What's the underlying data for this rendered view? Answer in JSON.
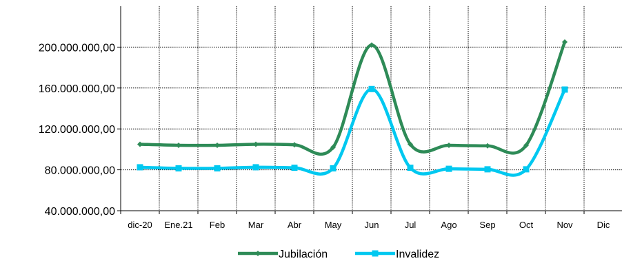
{
  "chart_data": {
    "type": "line",
    "title": "",
    "xlabel": "",
    "ylabel": "",
    "categories": [
      "dic-20",
      "Ene.21",
      "Feb",
      "Mar",
      "Abr",
      "May",
      "Jun",
      "Jul",
      "Ago",
      "Sep",
      "Oct",
      "Nov",
      "Dic"
    ],
    "ylim": [
      40000000,
      240000000
    ],
    "yticks": [
      40000000,
      80000000,
      120000000,
      160000000,
      200000000
    ],
    "ytick_labels": [
      "40.000.000,00",
      "80.000.000,00",
      "120.000.000,00",
      "160.000.000,00",
      "200.000.000,00"
    ],
    "grid": true,
    "legend_position": "bottom",
    "series": [
      {
        "name": "Jubilación",
        "color": "#2e8b57",
        "marker": "diamond",
        "values": [
          105000000,
          104000000,
          104000000,
          105000000,
          104500000,
          102000000,
          202000000,
          105000000,
          104000000,
          103500000,
          104000000,
          205000000,
          null
        ]
      },
      {
        "name": "Invalidez",
        "color": "#00c8f0",
        "marker": "square",
        "values": [
          82500000,
          81500000,
          81500000,
          82500000,
          82000000,
          81500000,
          159000000,
          82000000,
          81000000,
          80500000,
          80500000,
          158500000,
          null
        ]
      }
    ]
  }
}
